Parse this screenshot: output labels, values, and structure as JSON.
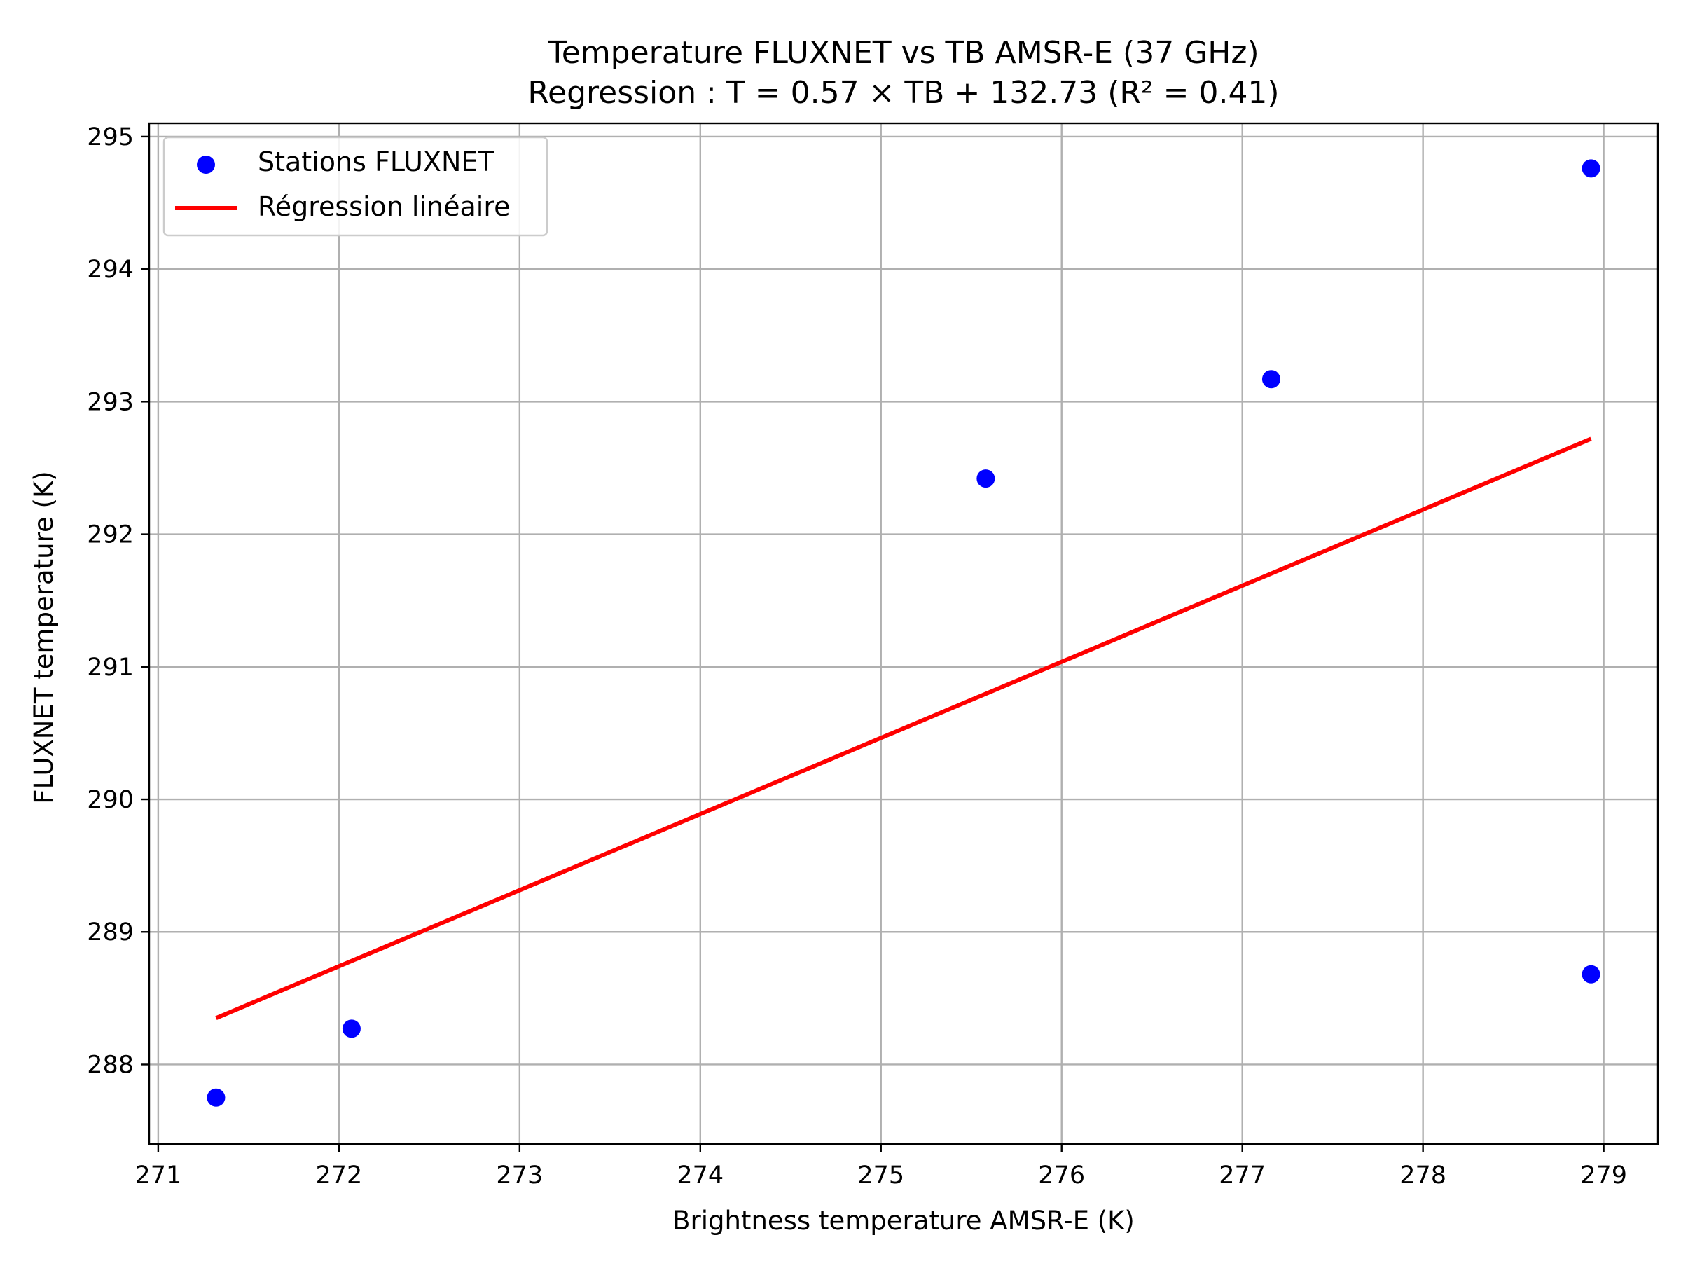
{
  "chart_data": {
    "type": "scatter",
    "title": "Temperature FLUXNET vs TB AMSR-E (37 GHz)",
    "subtitle": "Regression : T = 0.57 × TB + 132.73 (R² = 0.41)",
    "xlabel": "Brightness temperature AMSR-E (K)",
    "ylabel": "FLUXNET temperature (K)",
    "xlim": [
      270.95,
      279.3
    ],
    "ylim": [
      287.4,
      295.1
    ],
    "xticks": [
      271,
      272,
      273,
      274,
      275,
      276,
      277,
      278,
      279
    ],
    "yticks": [
      288,
      289,
      290,
      291,
      292,
      293,
      294,
      295
    ],
    "grid": true,
    "legend_position": "top-left",
    "series": [
      {
        "name": "Stations FLUXNET",
        "kind": "scatter",
        "color": "#0000ff",
        "points": [
          {
            "x": 271.32,
            "y": 287.75
          },
          {
            "x": 272.07,
            "y": 288.27
          },
          {
            "x": 275.58,
            "y": 292.42
          },
          {
            "x": 277.16,
            "y": 293.17
          },
          {
            "x": 278.93,
            "y": 294.76
          },
          {
            "x": 278.93,
            "y": 288.68
          }
        ]
      },
      {
        "name": "Régression linéaire",
        "kind": "line",
        "color": "#ff0000",
        "points": [
          {
            "x": 271.32,
            "y": 288.35
          },
          {
            "x": 278.93,
            "y": 292.72
          }
        ]
      }
    ]
  }
}
